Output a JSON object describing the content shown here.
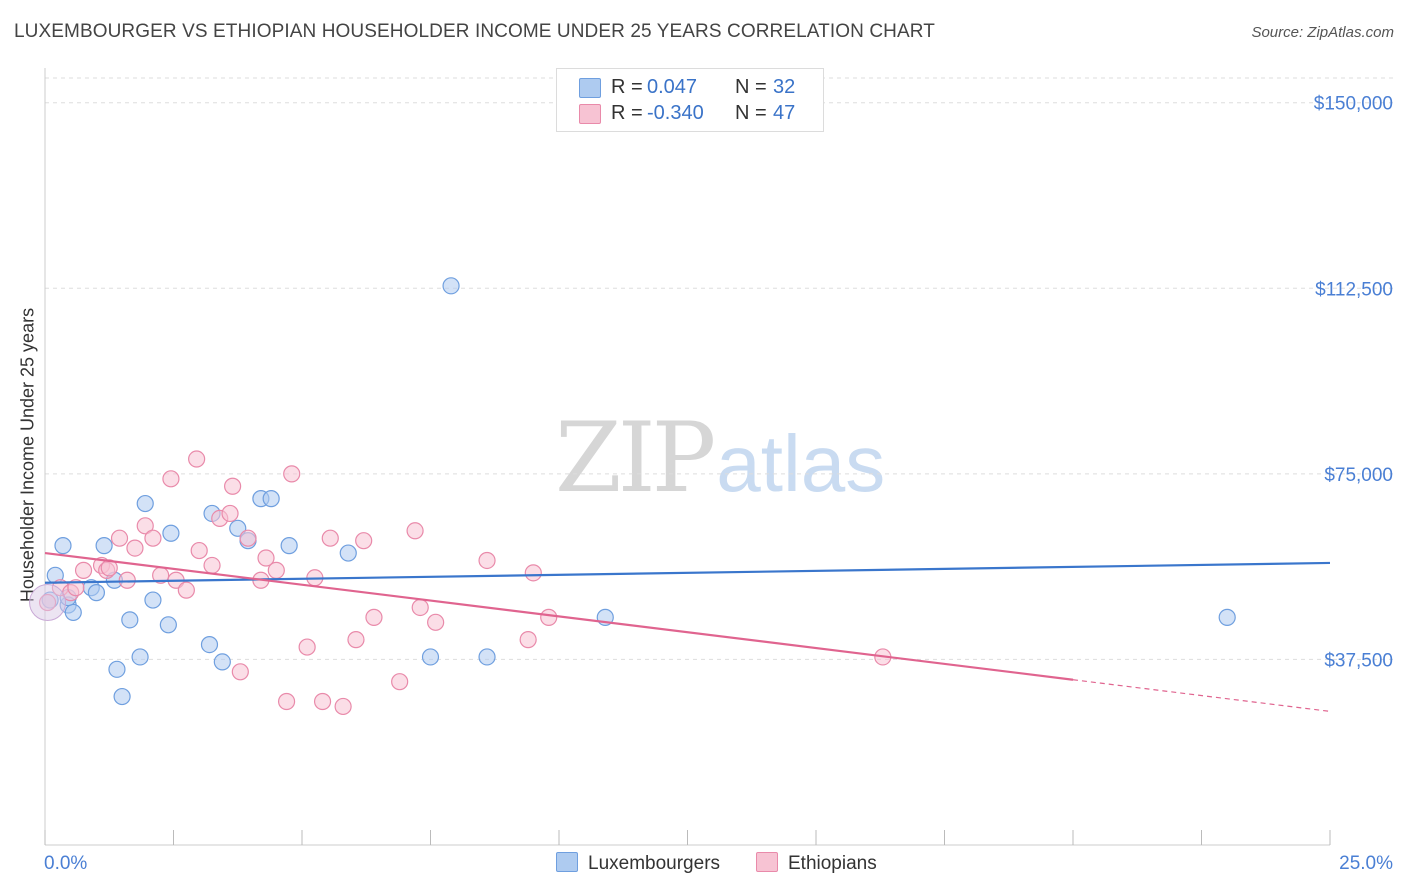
{
  "title": "LUXEMBOURGER VS ETHIOPIAN HOUSEHOLDER INCOME UNDER 25 YEARS CORRELATION CHART",
  "source": "Source: ZipAtlas.com",
  "watermark": {
    "zip": "ZIP",
    "atlas": "atlas"
  },
  "legend": {
    "rows": [
      {
        "r_label": "R =",
        "r_value": "0.047",
        "n_label": "N =",
        "n_value": "32",
        "color": "#aecbf0",
        "border": "#6f9fdf"
      },
      {
        "r_label": "R =",
        "r_value": "-0.340",
        "n_label": "N =",
        "n_value": "47",
        "color": "#f7c3d3",
        "border": "#e98aaa"
      }
    ]
  },
  "bottom_legend": [
    {
      "label": "Luxembourgers",
      "color": "#aecbf0",
      "border": "#6f9fdf"
    },
    {
      "label": "Ethiopians",
      "color": "#f7c3d3",
      "border": "#e98aaa"
    }
  ],
  "x_axis": {
    "min_label": "0.0%",
    "max_label": "25.0%"
  },
  "chart_data": {
    "type": "scatter",
    "title": "LUXEMBOURGER VS ETHIOPIAN HOUSEHOLDER INCOME UNDER 25 YEARS CORRELATION CHART",
    "xlabel": "",
    "ylabel": "Householder Income Under 25 years",
    "xlim": [
      0,
      25
    ],
    "ylim": [
      0,
      155000
    ],
    "y_ticks": [
      {
        "value": 37500,
        "label": "$37,500"
      },
      {
        "value": 75000,
        "label": "$75,000"
      },
      {
        "value": 112500,
        "label": "$112,500"
      },
      {
        "value": 150000,
        "label": "$150,000"
      }
    ],
    "x_ticks": [
      0,
      2.5,
      5,
      7.5,
      10,
      12.5,
      15,
      17.5,
      20,
      22.5,
      25
    ],
    "series": [
      {
        "name": "Luxembourgers",
        "color": "#aecbf0",
        "stroke": "#6f9fdf",
        "trend_color": "#3a76cc",
        "trend": {
          "x0": 0,
          "y0": 53000,
          "x1": 25,
          "y1": 57000,
          "solid_until": 25
        },
        "points": [
          [
            0.1,
            49500
          ],
          [
            0.2,
            54500
          ],
          [
            0.35,
            60500
          ],
          [
            0.45,
            48500
          ],
          [
            0.55,
            47000
          ],
          [
            0.9,
            52000
          ],
          [
            1.0,
            51000
          ],
          [
            1.15,
            60500
          ],
          [
            1.35,
            53500
          ],
          [
            1.4,
            35500
          ],
          [
            1.5,
            30000
          ],
          [
            1.65,
            45500
          ],
          [
            1.85,
            38000
          ],
          [
            1.95,
            69000
          ],
          [
            2.1,
            49500
          ],
          [
            2.4,
            44500
          ],
          [
            2.45,
            63000
          ],
          [
            3.2,
            40500
          ],
          [
            3.25,
            67000
          ],
          [
            3.45,
            37000
          ],
          [
            3.75,
            64000
          ],
          [
            3.95,
            61500
          ],
          [
            4.2,
            70000
          ],
          [
            4.4,
            70000
          ],
          [
            4.75,
            60500
          ],
          [
            5.9,
            59000
          ],
          [
            7.9,
            113000
          ],
          [
            7.5,
            38000
          ],
          [
            8.6,
            38000
          ],
          [
            10.9,
            46000
          ],
          [
            23.0,
            46000
          ],
          [
            0.45,
            50000
          ]
        ]
      },
      {
        "name": "Ethiopians",
        "color": "#f7c3d3",
        "stroke": "#e98aaa",
        "trend_color": "#e0648f",
        "trend": {
          "x0": 0,
          "y0": 59000,
          "x1": 25,
          "y1": 27000,
          "solid_until": 20
        },
        "points": [
          [
            0.05,
            49000
          ],
          [
            0.3,
            52000
          ],
          [
            0.5,
            51000
          ],
          [
            0.6,
            52000
          ],
          [
            0.75,
            55500
          ],
          [
            1.1,
            56500
          ],
          [
            1.2,
            55500
          ],
          [
            1.45,
            62000
          ],
          [
            1.6,
            53500
          ],
          [
            1.75,
            60000
          ],
          [
            1.95,
            64500
          ],
          [
            2.1,
            62000
          ],
          [
            2.25,
            54500
          ],
          [
            2.45,
            74000
          ],
          [
            2.55,
            53500
          ],
          [
            2.75,
            51500
          ],
          [
            2.95,
            78000
          ],
          [
            3.0,
            59500
          ],
          [
            3.25,
            56500
          ],
          [
            3.4,
            66000
          ],
          [
            3.6,
            67000
          ],
          [
            3.65,
            72500
          ],
          [
            3.8,
            35000
          ],
          [
            3.95,
            62000
          ],
          [
            4.2,
            53500
          ],
          [
            4.3,
            58000
          ],
          [
            4.5,
            55500
          ],
          [
            4.7,
            29000
          ],
          [
            4.8,
            75000
          ],
          [
            5.1,
            40000
          ],
          [
            5.25,
            54000
          ],
          [
            5.4,
            29000
          ],
          [
            5.55,
            62000
          ],
          [
            5.8,
            28000
          ],
          [
            6.05,
            41500
          ],
          [
            6.2,
            61500
          ],
          [
            6.4,
            46000
          ],
          [
            6.9,
            33000
          ],
          [
            7.2,
            63500
          ],
          [
            7.3,
            48000
          ],
          [
            7.6,
            45000
          ],
          [
            8.6,
            57500
          ],
          [
            9.4,
            41500
          ],
          [
            9.5,
            55000
          ],
          [
            9.8,
            46000
          ],
          [
            16.3,
            38000
          ],
          [
            1.25,
            56000
          ]
        ]
      }
    ]
  }
}
